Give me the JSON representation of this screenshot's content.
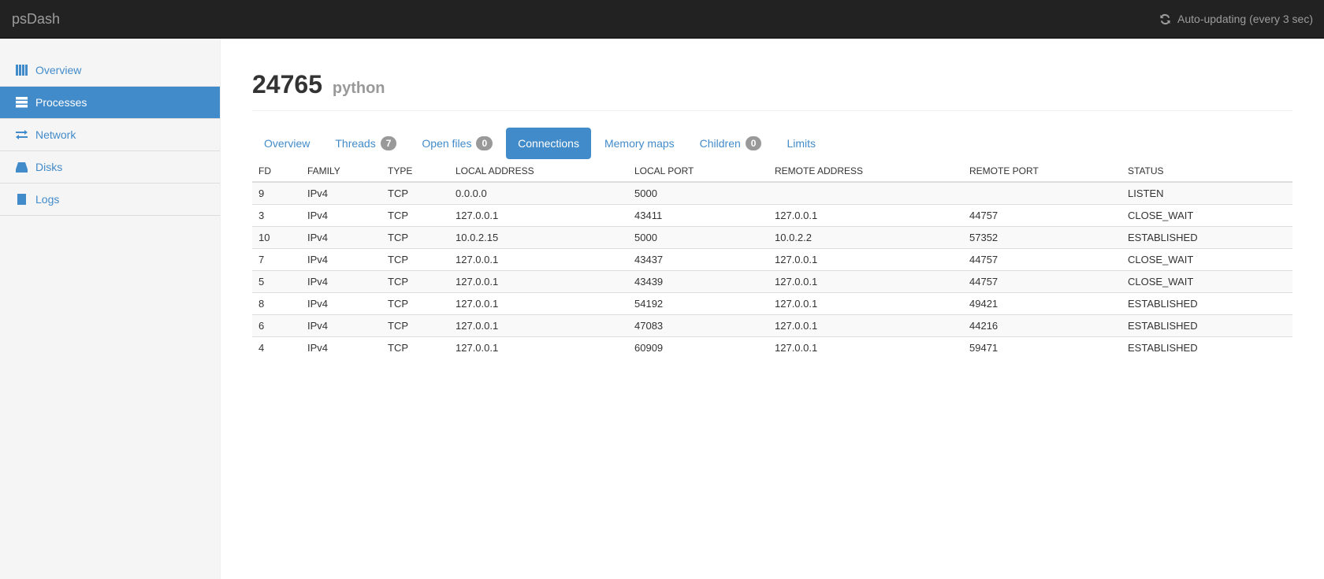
{
  "app": {
    "brand": "psDash",
    "auto_update": "Auto-updating (every 3 sec)"
  },
  "sidebar": {
    "items": [
      {
        "label": "Overview",
        "icon": "th-icon"
      },
      {
        "label": "Processes",
        "icon": "tasks-icon",
        "active": true
      },
      {
        "label": "Network",
        "icon": "transfer-icon"
      },
      {
        "label": "Disks",
        "icon": "hdd-icon"
      },
      {
        "label": "Logs",
        "icon": "book-icon"
      }
    ]
  },
  "page": {
    "pid": "24765",
    "name": "python"
  },
  "tabs": [
    {
      "label": "Overview"
    },
    {
      "label": "Threads",
      "badge": "7"
    },
    {
      "label": "Open files",
      "badge": "0"
    },
    {
      "label": "Connections",
      "active": true
    },
    {
      "label": "Memory maps"
    },
    {
      "label": "Children",
      "badge": "0"
    },
    {
      "label": "Limits"
    }
  ],
  "table": {
    "headers": [
      "FD",
      "FAMILY",
      "TYPE",
      "LOCAL ADDRESS",
      "LOCAL PORT",
      "REMOTE ADDRESS",
      "REMOTE PORT",
      "STATUS"
    ],
    "rows": [
      [
        "9",
        "IPv4",
        "TCP",
        "0.0.0.0",
        "5000",
        "",
        "",
        "LISTEN"
      ],
      [
        "3",
        "IPv4",
        "TCP",
        "127.0.0.1",
        "43411",
        "127.0.0.1",
        "44757",
        "CLOSE_WAIT"
      ],
      [
        "10",
        "IPv4",
        "TCP",
        "10.0.2.15",
        "5000",
        "10.0.2.2",
        "57352",
        "ESTABLISHED"
      ],
      [
        "7",
        "IPv4",
        "TCP",
        "127.0.0.1",
        "43437",
        "127.0.0.1",
        "44757",
        "CLOSE_WAIT"
      ],
      [
        "5",
        "IPv4",
        "TCP",
        "127.0.0.1",
        "43439",
        "127.0.0.1",
        "44757",
        "CLOSE_WAIT"
      ],
      [
        "8",
        "IPv4",
        "TCP",
        "127.0.0.1",
        "54192",
        "127.0.0.1",
        "49421",
        "ESTABLISHED"
      ],
      [
        "6",
        "IPv4",
        "TCP",
        "127.0.0.1",
        "47083",
        "127.0.0.1",
        "44216",
        "ESTABLISHED"
      ],
      [
        "4",
        "IPv4",
        "TCP",
        "127.0.0.1",
        "60909",
        "127.0.0.1",
        "59471",
        "ESTABLISHED"
      ]
    ]
  },
  "colors": {
    "accent": "#428bca",
    "navbar": "#222222"
  }
}
